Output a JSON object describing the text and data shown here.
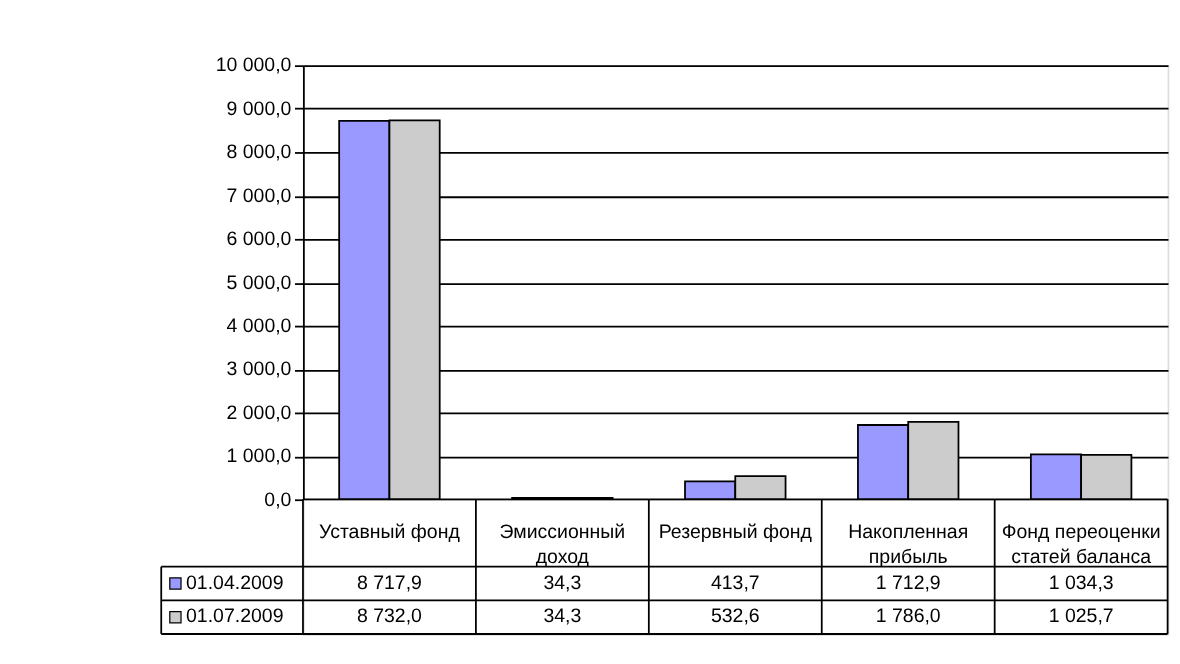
{
  "chart_data": {
    "type": "bar",
    "categories": [
      "Уставный фонд",
      "Эмиссионный доход",
      "Резервный фонд",
      "Накопленная прибыль",
      "Фонд переоценки статей баланса"
    ],
    "series": [
      {
        "name": "01.04.2009",
        "color": "#9999ff",
        "values": [
          8717.9,
          34.3,
          413.7,
          1712.9,
          1034.3
        ],
        "value_labels": [
          "8 717,9",
          "34,3",
          "413,7",
          "1 712,9",
          "1 034,3"
        ]
      },
      {
        "name": "01.07.2009",
        "color": "#cccccc",
        "values": [
          8732.0,
          34.3,
          532.6,
          1786.0,
          1025.7
        ],
        "value_labels": [
          "8 732,0",
          "34,3",
          "532,6",
          "1 786,0",
          "1 025,7"
        ]
      }
    ],
    "ylim": [
      0,
      10000
    ],
    "yticks": [
      {
        "value": 0,
        "label": "0,0"
      },
      {
        "value": 1000,
        "label": "1 000,0"
      },
      {
        "value": 2000,
        "label": "2 000,0"
      },
      {
        "value": 3000,
        "label": "3 000,0"
      },
      {
        "value": 4000,
        "label": "4 000,0"
      },
      {
        "value": 5000,
        "label": "5 000,0"
      },
      {
        "value": 6000,
        "label": "6 000,0"
      },
      {
        "value": 7000,
        "label": "7 000,0"
      },
      {
        "value": 8000,
        "label": "8 000,0"
      },
      {
        "value": 9000,
        "label": "9 000,0"
      },
      {
        "value": 10000,
        "label": "10 000,0"
      }
    ],
    "grid": "y",
    "legend": "bottom left"
  }
}
